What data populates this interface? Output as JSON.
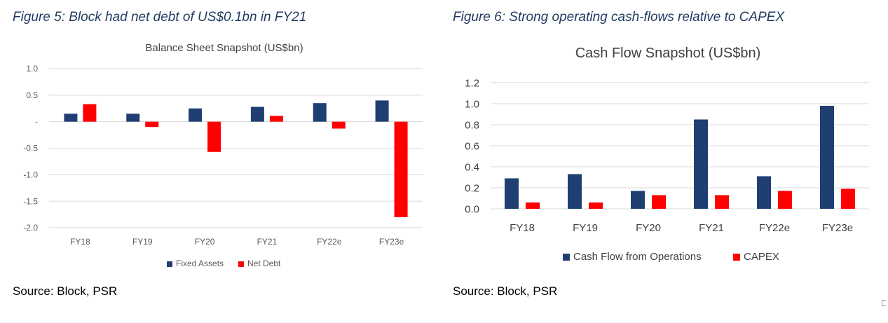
{
  "figure5": {
    "heading": "Figure 5: Block had net debt of US$0.1bn in FY21",
    "source": "Source: Block, PSR"
  },
  "figure6": {
    "heading": "Figure 6: Strong operating cash-flows relative to CAPEX",
    "source": "Source: Block, PSR"
  },
  "chart_data": [
    {
      "type": "bar",
      "title": "Balance Sheet Snapshot (US$bn)",
      "categories": [
        "FY18",
        "FY19",
        "FY20",
        "FY21",
        "FY22e",
        "FY23e"
      ],
      "series": [
        {
          "name": "Fixed Assets",
          "color": "#1f3f73",
          "values": [
            0.15,
            0.15,
            0.25,
            0.28,
            0.35,
            0.4
          ]
        },
        {
          "name": "Net Debt",
          "color": "#ff0000",
          "values": [
            0.33,
            -0.1,
            -0.57,
            0.11,
            -0.13,
            -1.8
          ]
        }
      ],
      "yticks": [
        1.0,
        0.5,
        0,
        -0.5,
        -1.0,
        -1.5,
        -2.0
      ],
      "ytick_labels": [
        "1.0",
        "0.5",
        "-",
        "-0.5",
        "-1.0",
        "-1.5",
        "-2.0"
      ],
      "ylim": [
        -2.0,
        1.0
      ],
      "grid": true,
      "legend": "bottom"
    },
    {
      "type": "bar",
      "title": "Cash Flow Snapshot (US$bn)",
      "categories": [
        "FY18",
        "FY19",
        "FY20",
        "FY21",
        "FY22e",
        "FY23e"
      ],
      "series": [
        {
          "name": "Cash Flow from Operations",
          "color": "#1f3f73",
          "values": [
            0.29,
            0.33,
            0.17,
            0.85,
            0.31,
            0.98
          ]
        },
        {
          "name": "CAPEX",
          "color": "#ff0000",
          "values": [
            0.06,
            0.06,
            0.13,
            0.13,
            0.17,
            0.19
          ]
        }
      ],
      "yticks": [
        1.2,
        1.0,
        0.8,
        0.6,
        0.4,
        0.2,
        0.0
      ],
      "ytick_labels": [
        "1.2",
        "1.0",
        "0.8",
        "0.6",
        "0.4",
        "0.2",
        "0.0"
      ],
      "ylim": [
        0.0,
        1.2
      ],
      "grid": true,
      "legend": "bottom"
    }
  ]
}
